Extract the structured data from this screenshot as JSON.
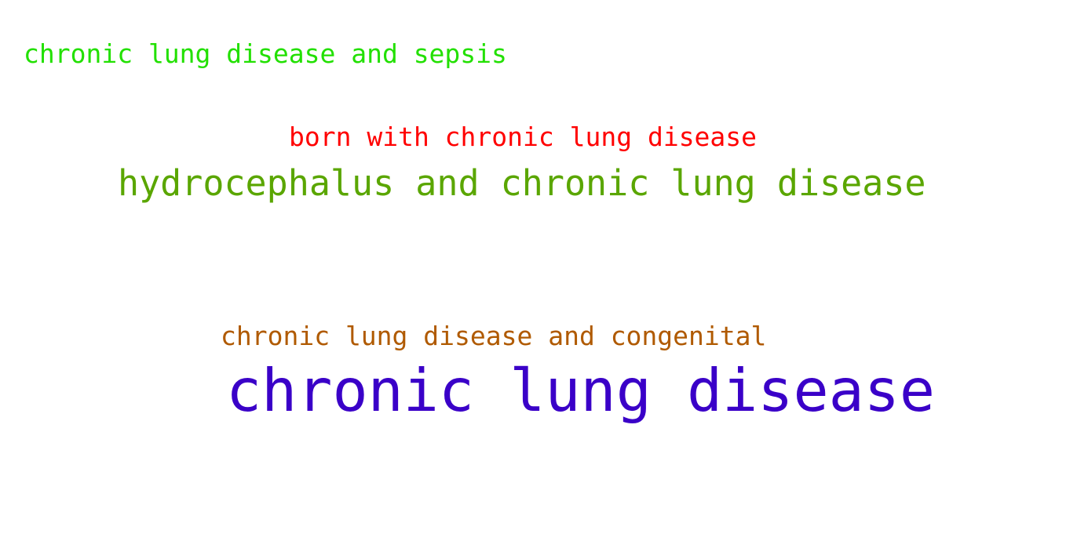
{
  "word_cloud": {
    "words": [
      {
        "text": "chronic lung disease and sepsis",
        "color": "#22e000"
      },
      {
        "text": "born with chronic lung disease",
        "color": "#ff0000"
      },
      {
        "text": "hydrocephalus and chronic lung disease",
        "color": "#5aa600"
      },
      {
        "text": "chronic lung disease and congenital",
        "color": "#b05a00"
      },
      {
        "text": "chronic lung disease",
        "color": "#3a00c8"
      }
    ]
  }
}
